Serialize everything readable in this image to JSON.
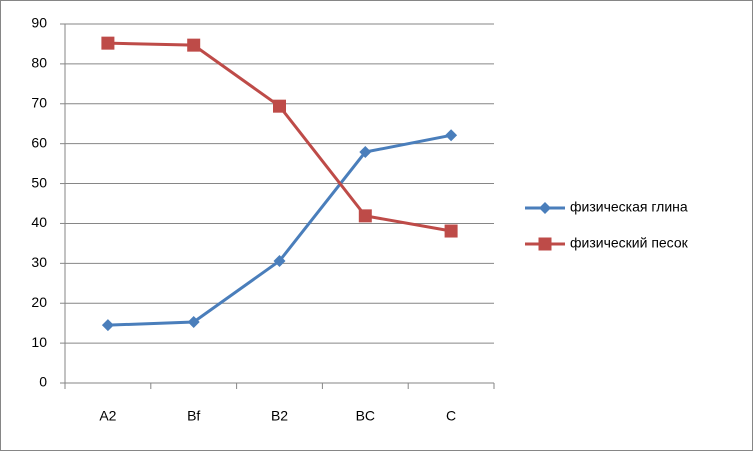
{
  "chart_data": {
    "type": "line",
    "categories": [
      "A2",
      "Bf",
      "B2",
      "BC",
      "C"
    ],
    "series": [
      {
        "name": "физическая глина",
        "color": "#4a7ebb",
        "marker": "diamond",
        "values": [
          14.5,
          15.3,
          30.6,
          57.9,
          62.1
        ]
      },
      {
        "name": "физический песок",
        "color": "#be4b48",
        "marker": "square",
        "values": [
          85.2,
          84.7,
          69.4,
          41.9,
          38.1
        ]
      }
    ],
    "ylim": [
      0,
      90
    ],
    "yticks": [
      0,
      10,
      20,
      30,
      40,
      50,
      60,
      70,
      80,
      90
    ],
    "grid": true,
    "legend": "right"
  }
}
